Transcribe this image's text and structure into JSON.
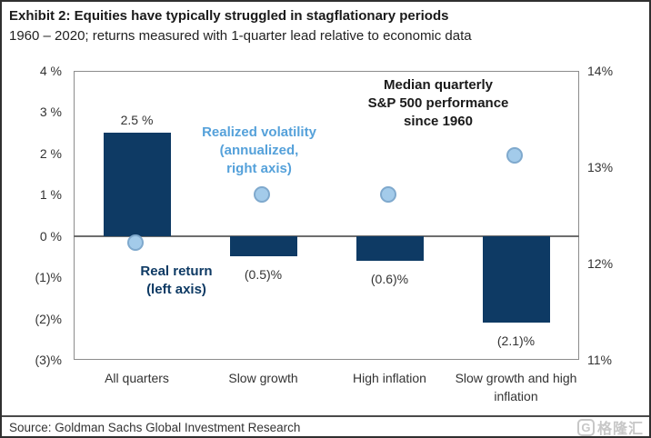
{
  "page": {
    "title": "Exhibit 2: Equities have typically struggled in stagflationary periods",
    "subtitle": "1960 – 2020; returns measured with 1-quarter lead relative to economic data",
    "source": "Source: Goldman Sachs Global Investment Research",
    "logo_icon_letter": "G",
    "logo_text": "格隆汇"
  },
  "colors": {
    "bar": "#0e3a64",
    "point_fill": "#a3cbea",
    "point_border": "#7fa9cd",
    "volatility_text": "#55a1da",
    "real_return_text": "#0e3a64",
    "median_text": "#1a1a1a",
    "axis_text": "#333333",
    "plot_border": "#8c8c8c",
    "zero_line": "#6e6e6e"
  },
  "chart_data": {
    "type": "bar",
    "overlay": "scatter",
    "title": "Exhibit 2: Equities have typically struggled in stagflationary periods",
    "subtitle": "1960 – 2020; returns measured with 1-quarter lead relative to economic data",
    "categories": [
      "All quarters",
      "Slow growth",
      "High inflation",
      "Slow growth and high inflation"
    ],
    "series": [
      {
        "name": "Real return (left axis)",
        "type": "bar",
        "axis": "left",
        "values": [
          2.5,
          -0.5,
          -0.6,
          -2.1
        ],
        "labels": [
          "2.5 %",
          "(0.5)%",
          "(0.6)%",
          "(2.1)%"
        ]
      },
      {
        "name": "Realized volatility (annualized, right axis)",
        "type": "scatter",
        "axis": "right",
        "values": [
          12.2,
          12.7,
          12.7,
          13.1
        ]
      }
    ],
    "left_axis": {
      "min": -3,
      "max": 4,
      "tick_values": [
        4,
        3,
        2,
        1,
        0,
        -1,
        -2,
        -3
      ],
      "tick_labels": [
        "4 %",
        "3 %",
        "2 %",
        "1 %",
        "0 %",
        "(1)%",
        "(2)%",
        "(3)%"
      ]
    },
    "right_axis": {
      "min": 11,
      "max": 14,
      "tick_values": [
        14,
        13,
        12,
        11
      ],
      "tick_labels": [
        "14%",
        "13%",
        "12%",
        "11%"
      ]
    },
    "grid": false,
    "legend_position": "in-plot annotations",
    "annotations": [
      {
        "id": "median",
        "text": "Median quarterly\nS&P 500 performance\nsince 1960",
        "color_key": "median_text"
      },
      {
        "id": "volatility",
        "text": "Realized volatility\n(annualized,\nright axis)",
        "color_key": "volatility_text"
      },
      {
        "id": "real_return",
        "text": "Real return\n(left axis)",
        "color_key": "real_return_text"
      }
    ]
  }
}
